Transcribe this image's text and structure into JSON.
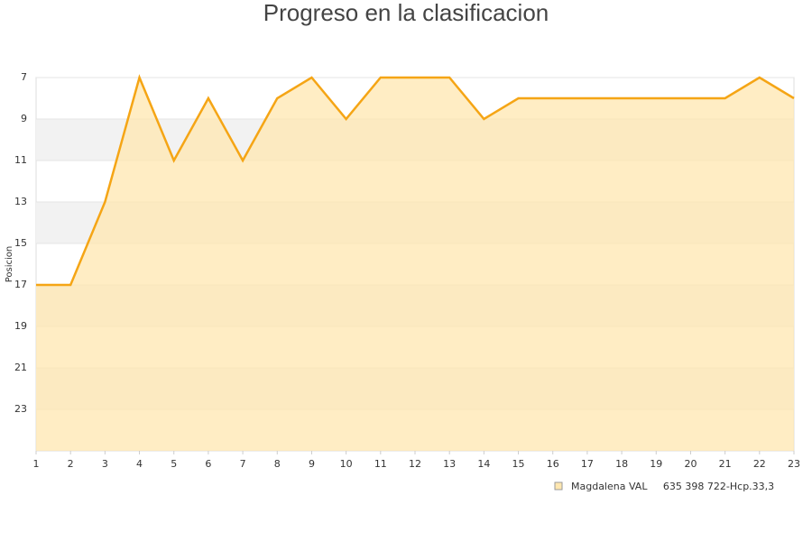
{
  "chart_data": {
    "type": "area",
    "title": "Progreso en la clasificacion",
    "ylabel": "Posicion",
    "x": [
      1,
      2,
      3,
      4,
      5,
      6,
      7,
      8,
      9,
      10,
      11,
      12,
      13,
      14,
      15,
      16,
      17,
      18,
      19,
      20,
      21,
      22,
      23
    ],
    "series": [
      {
        "name": "Magdalena VAL     635 398 722-Hcp.33,3",
        "color": "#f5a515",
        "fill": "#ffe7b0",
        "values": [
          17,
          17,
          13,
          7,
          11,
          8,
          11,
          8,
          7,
          9,
          7,
          7,
          7,
          9,
          8,
          8,
          8,
          8,
          8,
          8,
          8,
          7,
          8
        ]
      }
    ],
    "xlim": [
      1,
      23
    ],
    "xticks": [
      1,
      2,
      3,
      4,
      5,
      6,
      7,
      8,
      9,
      10,
      11,
      12,
      13,
      14,
      15,
      16,
      17,
      18,
      19,
      20,
      21,
      22,
      23
    ],
    "ylim": [
      7,
      25
    ],
    "yticks": [
      7,
      9,
      11,
      13,
      15,
      17,
      19,
      21,
      23
    ],
    "y_inverted": true,
    "grid": true
  }
}
